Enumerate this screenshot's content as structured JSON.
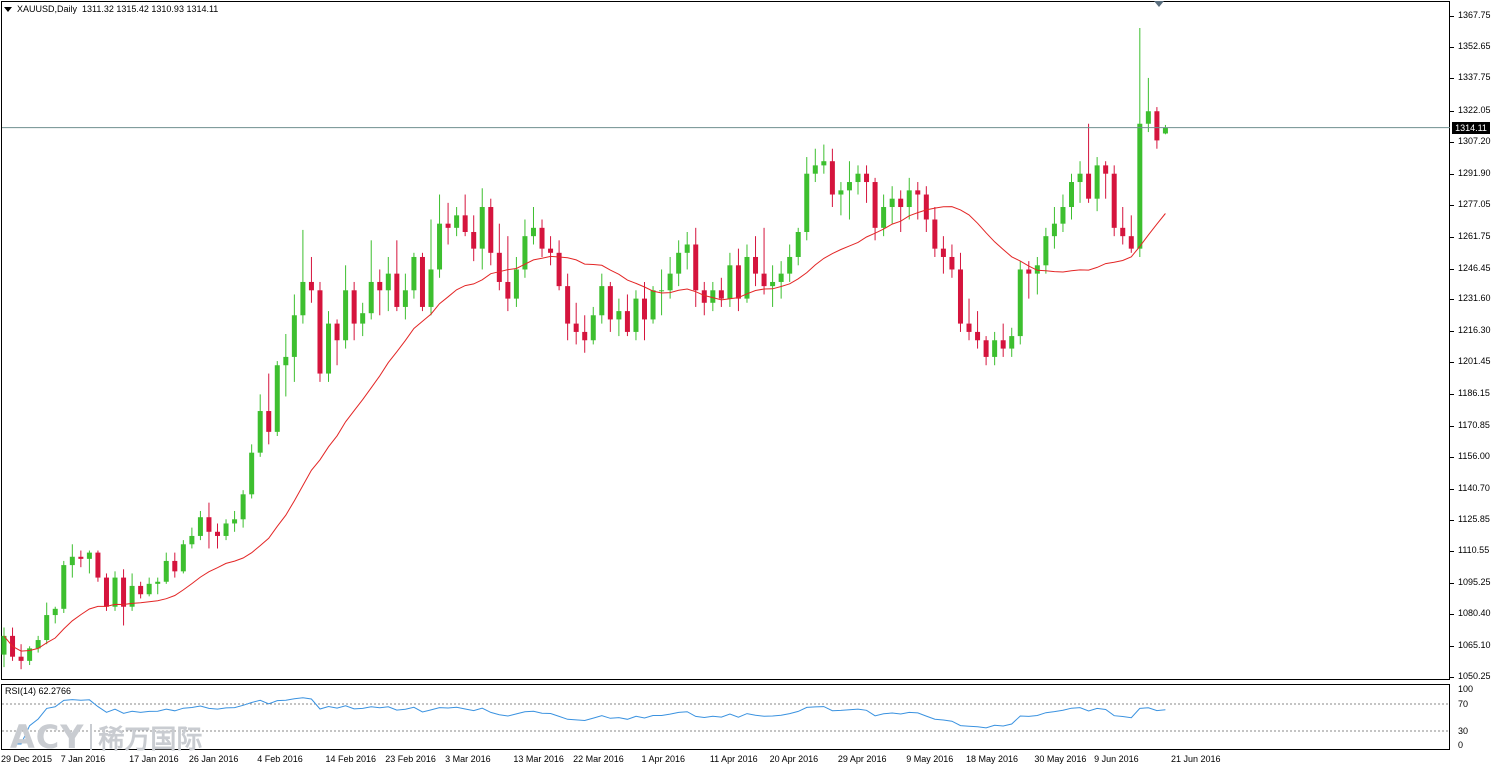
{
  "header": {
    "symbol": "XAUUSD,Daily",
    "ohlc": "1311.32 1315.42 1310.93 1314.11"
  },
  "price_tag": "1314.11",
  "rsi": {
    "label": "RSI(14) 62.2766",
    "levels": [
      "100",
      "70",
      "30",
      "0"
    ]
  },
  "watermark": {
    "logo": "ACY",
    "text": "稀万国际"
  },
  "colors": {
    "bull": "#3dbf2f",
    "bear": "#d5143d",
    "ma": "#e32626",
    "rsi": "#3a92e0",
    "current_price_line": "#6f8f8f"
  },
  "chart_data": {
    "type": "candlestick",
    "title": "XAUUSD,Daily",
    "ylim": [
      1050.25,
      1367.75
    ],
    "yticks": [
      "1367.75",
      "1352.65",
      "1337.75",
      "1322.05",
      "1307.20",
      "1291.90",
      "1277.05",
      "1261.75",
      "1246.45",
      "1231.60",
      "1216.30",
      "1201.45",
      "1186.15",
      "1170.85",
      "1156.00",
      "1140.70",
      "1125.85",
      "1110.55",
      "1095.25",
      "1080.40",
      "1065.10",
      "1050.25"
    ],
    "xticks": [
      "29 Dec 2015",
      "7 Jan 2016",
      "17 Jan 2016",
      "26 Jan 2016",
      "4 Feb 2016",
      "14 Feb 2016",
      "23 Feb 2016",
      "3 Mar 2016",
      "13 Mar 2016",
      "22 Mar 2016",
      "1 Apr 2016",
      "11 Apr 2016",
      "20 Apr 2016",
      "29 Apr 2016",
      "9 May 2016",
      "18 May 2016",
      "30 May 2016",
      "9 Jun 2016",
      "21 Jun 2016"
    ],
    "xtick_index": [
      0,
      7,
      15,
      22,
      30,
      38,
      45,
      52,
      60,
      67,
      75,
      83,
      90,
      98,
      106,
      113,
      121,
      128,
      137
    ],
    "candles": [
      [
        1061,
        1074,
        1055,
        1070
      ],
      [
        1070,
        1074,
        1058,
        1060
      ],
      [
        1060,
        1066,
        1054,
        1058
      ],
      [
        1058,
        1065,
        1056,
        1064
      ],
      [
        1064,
        1070,
        1062,
        1068
      ],
      [
        1068,
        1086,
        1066,
        1080
      ],
      [
        1080,
        1084,
        1076,
        1083
      ],
      [
        1083,
        1106,
        1081,
        1104
      ],
      [
        1104,
        1114,
        1098,
        1108
      ],
      [
        1108,
        1111,
        1103,
        1107
      ],
      [
        1107,
        1111,
        1100,
        1110
      ],
      [
        1110,
        1111,
        1096,
        1098
      ],
      [
        1098,
        1100,
        1082,
        1084
      ],
      [
        1084,
        1101,
        1082,
        1098
      ],
      [
        1098,
        1102,
        1075,
        1084
      ],
      [
        1084,
        1100,
        1082,
        1094
      ],
      [
        1094,
        1096,
        1088,
        1090
      ],
      [
        1090,
        1098,
        1089,
        1095
      ],
      [
        1095,
        1098,
        1090,
        1096
      ],
      [
        1096,
        1110,
        1095,
        1106
      ],
      [
        1106,
        1110,
        1098,
        1101
      ],
      [
        1101,
        1116,
        1100,
        1114
      ],
      [
        1114,
        1122,
        1112,
        1118
      ],
      [
        1118,
        1130,
        1116,
        1127
      ],
      [
        1127,
        1134,
        1112,
        1120
      ],
      [
        1120,
        1124,
        1112,
        1118
      ],
      [
        1118,
        1126,
        1116,
        1124
      ],
      [
        1124,
        1130,
        1120,
        1126
      ],
      [
        1126,
        1140,
        1122,
        1138
      ],
      [
        1138,
        1162,
        1136,
        1158
      ],
      [
        1158,
        1186,
        1156,
        1178
      ],
      [
        1178,
        1196,
        1162,
        1168
      ],
      [
        1168,
        1202,
        1166,
        1200
      ],
      [
        1200,
        1215,
        1185,
        1204
      ],
      [
        1204,
        1234,
        1192,
        1224
      ],
      [
        1224,
        1265,
        1220,
        1240
      ],
      [
        1240,
        1252,
        1230,
        1236
      ],
      [
        1236,
        1240,
        1192,
        1196
      ],
      [
        1196,
        1226,
        1192,
        1220
      ],
      [
        1220,
        1222,
        1200,
        1212
      ],
      [
        1212,
        1248,
        1208,
        1236
      ],
      [
        1236,
        1240,
        1212,
        1220
      ],
      [
        1220,
        1230,
        1214,
        1225
      ],
      [
        1225,
        1260,
        1222,
        1240
      ],
      [
        1240,
        1246,
        1224,
        1236
      ],
      [
        1236,
        1252,
        1226,
        1244
      ],
      [
        1244,
        1260,
        1226,
        1228
      ],
      [
        1228,
        1244,
        1222,
        1236
      ],
      [
        1236,
        1254,
        1232,
        1252
      ],
      [
        1252,
        1254,
        1226,
        1228
      ],
      [
        1228,
        1270,
        1224,
        1246
      ],
      [
        1246,
        1282,
        1242,
        1268
      ],
      [
        1268,
        1278,
        1258,
        1266
      ],
      [
        1266,
        1276,
        1262,
        1272
      ],
      [
        1272,
        1282,
        1262,
        1264
      ],
      [
        1264,
        1272,
        1250,
        1256
      ],
      [
        1256,
        1285,
        1246,
        1276
      ],
      [
        1276,
        1280,
        1248,
        1254
      ],
      [
        1254,
        1268,
        1236,
        1240
      ],
      [
        1240,
        1262,
        1226,
        1232
      ],
      [
        1232,
        1252,
        1228,
        1246
      ],
      [
        1246,
        1270,
        1242,
        1262
      ],
      [
        1262,
        1276,
        1258,
        1266
      ],
      [
        1266,
        1270,
        1252,
        1256
      ],
      [
        1256,
        1262,
        1248,
        1254
      ],
      [
        1254,
        1260,
        1236,
        1238
      ],
      [
        1238,
        1244,
        1212,
        1220
      ],
      [
        1220,
        1230,
        1210,
        1216
      ],
      [
        1216,
        1224,
        1206,
        1212
      ],
      [
        1212,
        1228,
        1210,
        1224
      ],
      [
        1224,
        1244,
        1220,
        1238
      ],
      [
        1238,
        1240,
        1216,
        1222
      ],
      [
        1222,
        1232,
        1214,
        1226
      ],
      [
        1226,
        1234,
        1214,
        1216
      ],
      [
        1216,
        1236,
        1212,
        1232
      ],
      [
        1232,
        1240,
        1212,
        1222
      ],
      [
        1222,
        1238,
        1220,
        1236
      ],
      [
        1236,
        1246,
        1224,
        1236
      ],
      [
        1236,
        1252,
        1232,
        1244
      ],
      [
        1244,
        1260,
        1238,
        1254
      ],
      [
        1254,
        1264,
        1246,
        1258
      ],
      [
        1258,
        1266,
        1228,
        1236
      ],
      [
        1236,
        1240,
        1224,
        1230
      ],
      [
        1230,
        1240,
        1226,
        1236
      ],
      [
        1236,
        1242,
        1228,
        1232
      ],
      [
        1232,
        1254,
        1228,
        1248
      ],
      [
        1248,
        1256,
        1226,
        1232
      ],
      [
        1232,
        1258,
        1230,
        1252
      ],
      [
        1252,
        1262,
        1238,
        1244
      ],
      [
        1244,
        1266,
        1234,
        1238
      ],
      [
        1238,
        1248,
        1228,
        1240
      ],
      [
        1240,
        1250,
        1232,
        1244
      ],
      [
        1244,
        1258,
        1240,
        1252
      ],
      [
        1252,
        1266,
        1248,
        1264
      ],
      [
        1264,
        1300,
        1260,
        1292
      ],
      [
        1292,
        1304,
        1288,
        1296
      ],
      [
        1296,
        1306,
        1292,
        1298
      ],
      [
        1298,
        1304,
        1276,
        1282
      ],
      [
        1282,
        1288,
        1272,
        1284
      ],
      [
        1284,
        1298,
        1270,
        1288
      ],
      [
        1288,
        1296,
        1282,
        1292
      ],
      [
        1292,
        1296,
        1278,
        1288
      ],
      [
        1288,
        1290,
        1260,
        1266
      ],
      [
        1266,
        1282,
        1262,
        1276
      ],
      [
        1276,
        1286,
        1268,
        1280
      ],
      [
        1280,
        1284,
        1264,
        1276
      ],
      [
        1276,
        1290,
        1270,
        1284
      ],
      [
        1284,
        1288,
        1270,
        1282
      ],
      [
        1282,
        1286,
        1264,
        1270
      ],
      [
        1270,
        1276,
        1252,
        1256
      ],
      [
        1256,
        1262,
        1244,
        1252
      ],
      [
        1252,
        1258,
        1242,
        1246
      ],
      [
        1246,
        1254,
        1216,
        1220
      ],
      [
        1220,
        1232,
        1212,
        1216
      ],
      [
        1216,
        1226,
        1208,
        1212
      ],
      [
        1212,
        1214,
        1200,
        1204
      ],
      [
        1204,
        1216,
        1200,
        1212
      ],
      [
        1212,
        1220,
        1204,
        1208
      ],
      [
        1208,
        1218,
        1204,
        1214
      ],
      [
        1214,
        1250,
        1210,
        1246
      ],
      [
        1246,
        1250,
        1232,
        1244
      ],
      [
        1244,
        1252,
        1234,
        1248
      ],
      [
        1248,
        1266,
        1244,
        1262
      ],
      [
        1262,
        1276,
        1256,
        1268
      ],
      [
        1268,
        1282,
        1264,
        1276
      ],
      [
        1276,
        1292,
        1270,
        1288
      ],
      [
        1288,
        1298,
        1278,
        1292
      ],
      [
        1292,
        1316,
        1278,
        1280
      ],
      [
        1280,
        1300,
        1274,
        1296
      ],
      [
        1296,
        1298,
        1280,
        1292
      ],
      [
        1292,
        1296,
        1262,
        1266
      ],
      [
        1266,
        1276,
        1258,
        1262
      ],
      [
        1262,
        1272,
        1254,
        1256
      ],
      [
        1256,
        1362,
        1252,
        1316
      ],
      [
        1316,
        1338,
        1312,
        1322
      ],
      [
        1322,
        1324,
        1304,
        1308
      ],
      [
        1311.32,
        1315.42,
        1310.93,
        1314.11
      ]
    ],
    "ma_period": 20,
    "ma_color": "#e32626",
    "current_price": 1314.11,
    "rsi_ylim": [
      0,
      100
    ],
    "rsi_levels": [
      70,
      30
    ]
  }
}
